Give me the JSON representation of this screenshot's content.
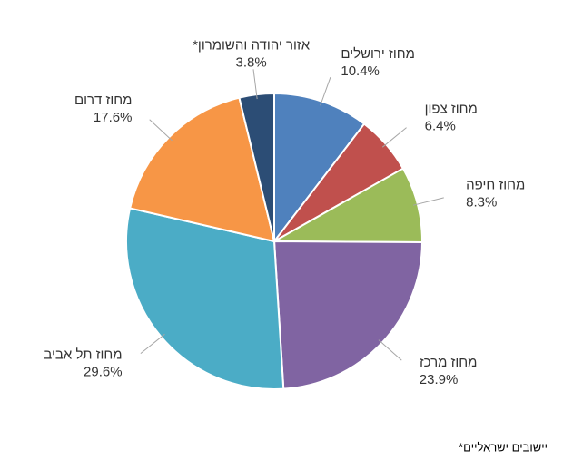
{
  "chart_data": {
    "type": "pie",
    "categories": [
      "מחוז ירושלים",
      "מחוז צפון",
      "מחוז חיפה",
      "מחוז מרכז",
      "מחוז תל אביב",
      "מחוז דרום",
      "*אזור יהודה והשומרון"
    ],
    "values": [
      10.4,
      6.4,
      8.3,
      23.9,
      29.6,
      17.6,
      3.8
    ],
    "value_labels": [
      "10.4%",
      "6.4%",
      "8.3%",
      "23.9%",
      "29.6%",
      "17.6%",
      "3.8%"
    ],
    "colors": [
      "#4f81bd",
      "#c0504d",
      "#9bbb59",
      "#8064a2",
      "#4bacc6",
      "#f79646",
      "#2c4d75"
    ],
    "footnote": "*יישובים ישראליים"
  }
}
